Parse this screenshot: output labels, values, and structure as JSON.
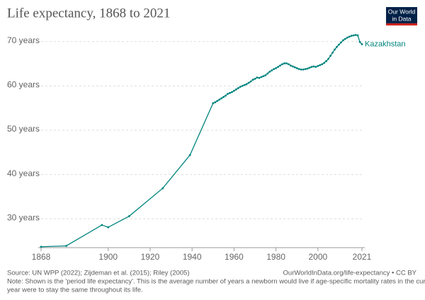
{
  "chart_data": {
    "type": "line",
    "title": "Life expectancy, 1868 to 2021",
    "logo": [
      "Our World",
      "in Data"
    ],
    "x": [
      1868,
      1880,
      1897,
      1900,
      1910,
      1926,
      1939,
      1950,
      1951,
      1952,
      1953,
      1954,
      1955,
      1956,
      1957,
      1958,
      1959,
      1960,
      1961,
      1962,
      1963,
      1964,
      1965,
      1966,
      1967,
      1968,
      1969,
      1970,
      1971,
      1972,
      1973,
      1974,
      1975,
      1976,
      1977,
      1978,
      1979,
      1980,
      1981,
      1982,
      1983,
      1984,
      1985,
      1986,
      1987,
      1988,
      1989,
      1990,
      1991,
      1992,
      1993,
      1994,
      1995,
      1996,
      1997,
      1998,
      1999,
      2000,
      2001,
      2002,
      2003,
      2004,
      2005,
      2006,
      2007,
      2008,
      2009,
      2010,
      2011,
      2012,
      2013,
      2014,
      2015,
      2016,
      2017,
      2018,
      2019,
      2020,
      2021
    ],
    "series": [
      {
        "name": "Kazakhstan",
        "color": "#00847e",
        "values": [
          23.7,
          23.9,
          28.6,
          28.1,
          30.6,
          36.9,
          44.4,
          56.1,
          56.3,
          56.6,
          56.9,
          57.2,
          57.5,
          57.8,
          58.2,
          58.4,
          58.6,
          58.9,
          59.2,
          59.5,
          59.8,
          60.0,
          60.2,
          60.4,
          60.7,
          61.0,
          61.4,
          61.6,
          61.9,
          61.8,
          62.0,
          62.2,
          62.4,
          62.8,
          63.2,
          63.5,
          63.8,
          64.0,
          64.3,
          64.6,
          64.9,
          65.1,
          65.1,
          64.9,
          64.6,
          64.4,
          64.2,
          64.0,
          63.8,
          63.7,
          63.7,
          63.8,
          63.9,
          64.1,
          64.3,
          64.4,
          64.3,
          64.5,
          64.7,
          64.9,
          65.2,
          65.6,
          66.1,
          66.8,
          67.5,
          68.2,
          68.8,
          69.3,
          69.8,
          70.3,
          70.6,
          70.9,
          71.1,
          71.3,
          71.4,
          71.5,
          71.4,
          69.9,
          69.4
        ]
      }
    ],
    "xlim": [
      1868,
      2021
    ],
    "xticks": [
      1868,
      1900,
      1920,
      1940,
      1960,
      1980,
      2000,
      2021
    ],
    "ylim": [
      23.5,
      72.2
    ],
    "yticks": [
      {
        "value": 30,
        "label": "30 years"
      },
      {
        "value": 40,
        "label": "40 years"
      },
      {
        "value": 50,
        "label": "50 years"
      },
      {
        "value": 60,
        "label": "60 years"
      },
      {
        "value": 70,
        "label": "70 years"
      }
    ],
    "grid": true,
    "source": "Source: UN WPP (2022); Zijdeman et al. (2015); Riley (2005)",
    "url": "OurWorldInData.org/life-expectancy • CC BY",
    "note": [
      "Note: Shown is the 'period life expectancy'. This is the average number of years a newborn would live if age-specific mortality rates in the current",
      "year were to stay the same throughout its life."
    ]
  }
}
